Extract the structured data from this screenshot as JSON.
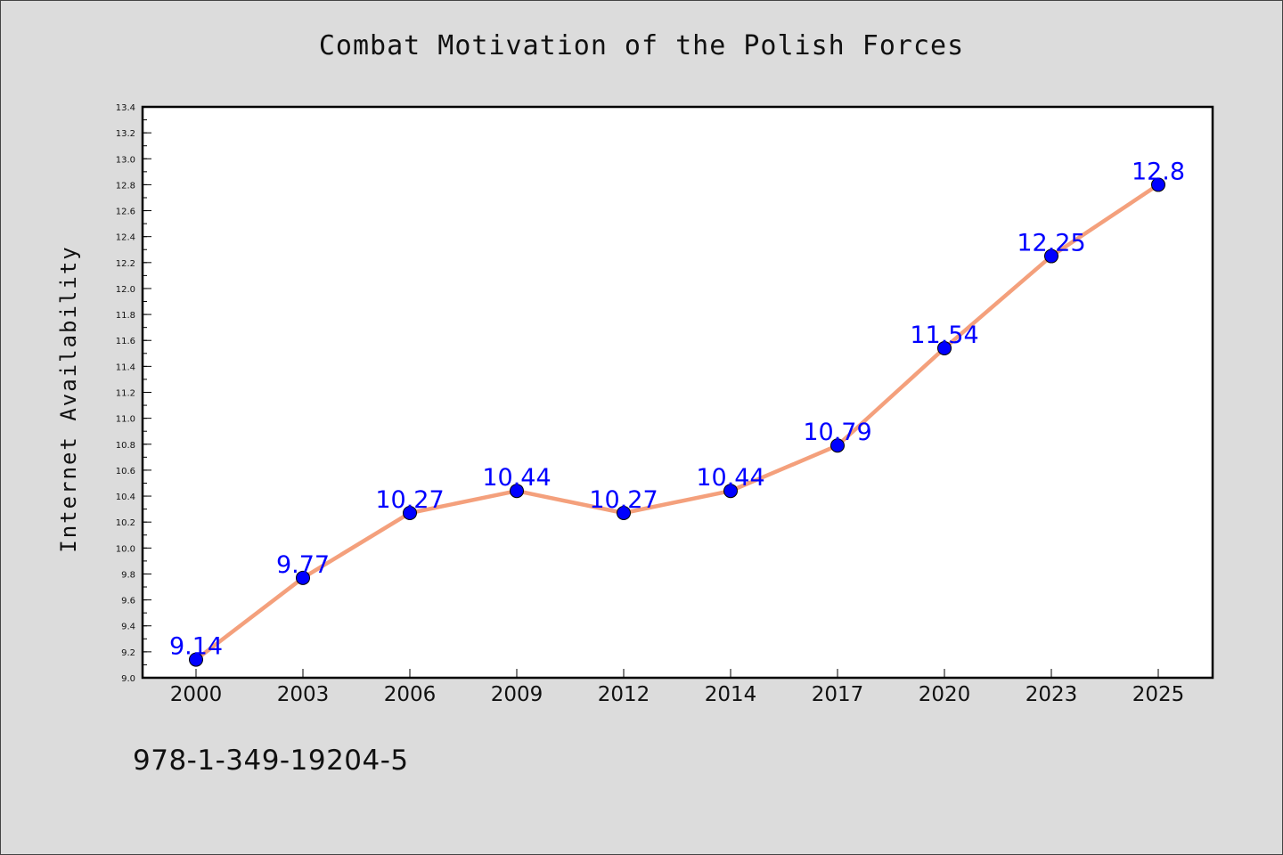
{
  "chart_data": {
    "type": "line",
    "title": "Combat Motivation of the Polish Forces",
    "xlabel": "",
    "ylabel": "Internet Availability",
    "categories": [
      "2000",
      "2003",
      "2006",
      "2009",
      "2012",
      "2014",
      "2017",
      "2020",
      "2023",
      "2025"
    ],
    "series": [
      {
        "values": [
          9.14,
          9.77,
          10.27,
          10.44,
          10.27,
          10.44,
          10.79,
          11.54,
          12.25,
          12.8
        ]
      }
    ],
    "data_labels": [
      "9.14",
      "9.77",
      "10.27",
      "10.44",
      "10.27",
      "10.44",
      "10.79",
      "11.54",
      "12.25",
      "12.8"
    ],
    "ylim": [
      9.0,
      13.4
    ],
    "yticks": [
      "9.0",
      "9.2",
      "9.4",
      "9.6",
      "9.8",
      "10.0",
      "10.2",
      "10.4",
      "10.6",
      "10.8",
      "11.0",
      "11.2",
      "11.4",
      "11.6",
      "11.8",
      "12.0",
      "12.2",
      "12.4",
      "12.6",
      "12.8",
      "13.0",
      "13.2",
      "13.4"
    ],
    "grid": false,
    "line_color": "#f4a07c",
    "marker_color": "#0000ff",
    "label_color": "#0000ff"
  },
  "footer": {
    "isbn": "978-1-349-19204-5"
  }
}
